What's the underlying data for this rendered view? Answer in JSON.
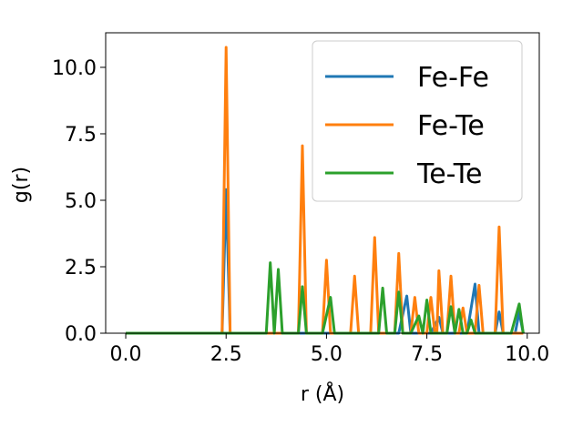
{
  "chart_data": {
    "type": "line",
    "xlabel": "r (Å)",
    "ylabel": "g(r)",
    "xlim": [
      -0.5,
      10.3
    ],
    "ylim": [
      0.0,
      11.3
    ],
    "xticks": [
      0.0,
      2.5,
      5.0,
      7.5,
      10.0
    ],
    "xtick_labels": [
      "0.0",
      "2.5",
      "5.0",
      "7.5",
      "10.0"
    ],
    "yticks": [
      0.0,
      2.5,
      5.0,
      7.5,
      10.0
    ],
    "ytick_labels": [
      "0.0",
      "2.5",
      "5.0",
      "7.5",
      "10.0"
    ],
    "grid": false,
    "legend_position": "upper-right",
    "series": [
      {
        "name": "Fe-Fe",
        "color": "#1f77b4",
        "points": [
          [
            0.0,
            0
          ],
          [
            2.3,
            0
          ],
          [
            2.4,
            0
          ],
          [
            2.5,
            5.4
          ],
          [
            2.6,
            0
          ],
          [
            3.0,
            0
          ],
          [
            6.8,
            0
          ],
          [
            7.0,
            1.4
          ],
          [
            7.1,
            0
          ],
          [
            7.6,
            0
          ],
          [
            7.8,
            0.6
          ],
          [
            7.9,
            0
          ],
          [
            8.5,
            0
          ],
          [
            8.7,
            1.85
          ],
          [
            8.8,
            0
          ],
          [
            9.2,
            0
          ],
          [
            9.3,
            0.8
          ],
          [
            9.4,
            0
          ],
          [
            9.7,
            0
          ],
          [
            9.8,
            0.8
          ],
          [
            9.9,
            0
          ]
        ]
      },
      {
        "name": "Fe-Te",
        "color": "#ff7f0e",
        "points": [
          [
            0.0,
            0
          ],
          [
            2.4,
            0
          ],
          [
            2.5,
            10.75
          ],
          [
            2.6,
            0
          ],
          [
            4.3,
            0
          ],
          [
            4.4,
            7.05
          ],
          [
            4.5,
            0
          ],
          [
            4.9,
            0
          ],
          [
            5.0,
            2.75
          ],
          [
            5.1,
            0
          ],
          [
            5.6,
            0
          ],
          [
            5.7,
            2.15
          ],
          [
            5.8,
            0
          ],
          [
            6.1,
            0
          ],
          [
            6.2,
            3.6
          ],
          [
            6.3,
            0
          ],
          [
            6.7,
            0
          ],
          [
            6.8,
            3.0
          ],
          [
            6.9,
            0
          ],
          [
            7.1,
            0
          ],
          [
            7.2,
            1.35
          ],
          [
            7.3,
            0
          ],
          [
            7.5,
            0
          ],
          [
            7.6,
            1.35
          ],
          [
            7.7,
            0
          ],
          [
            7.75,
            0
          ],
          [
            7.8,
            2.35
          ],
          [
            7.9,
            0
          ],
          [
            8.0,
            0
          ],
          [
            8.1,
            2.15
          ],
          [
            8.2,
            0
          ],
          [
            8.3,
            0
          ],
          [
            8.4,
            0.95
          ],
          [
            8.5,
            0
          ],
          [
            8.7,
            0
          ],
          [
            8.8,
            1.8
          ],
          [
            8.9,
            0
          ],
          [
            9.2,
            0
          ],
          [
            9.3,
            4.0
          ],
          [
            9.4,
            0
          ],
          [
            9.9,
            0
          ]
        ]
      },
      {
        "name": "Te-Te",
        "color": "#2ca02c",
        "points": [
          [
            0.0,
            0
          ],
          [
            3.5,
            0
          ],
          [
            3.6,
            2.65
          ],
          [
            3.7,
            0
          ],
          [
            3.8,
            2.4
          ],
          [
            3.9,
            0
          ],
          [
            4.3,
            0
          ],
          [
            4.4,
            1.75
          ],
          [
            4.5,
            0
          ],
          [
            4.9,
            0
          ],
          [
            5.1,
            1.35
          ],
          [
            5.2,
            0
          ],
          [
            6.3,
            0
          ],
          [
            6.4,
            1.7
          ],
          [
            6.5,
            0
          ],
          [
            6.7,
            0
          ],
          [
            6.8,
            1.55
          ],
          [
            6.9,
            0
          ],
          [
            7.1,
            0
          ],
          [
            7.3,
            0.65
          ],
          [
            7.4,
            0
          ],
          [
            7.5,
            1.25
          ],
          [
            7.6,
            0
          ],
          [
            8.0,
            0
          ],
          [
            8.1,
            1.0
          ],
          [
            8.2,
            0
          ],
          [
            8.3,
            0.9
          ],
          [
            8.4,
            0
          ],
          [
            8.5,
            0
          ],
          [
            8.6,
            0.5
          ],
          [
            8.7,
            0
          ],
          [
            9.6,
            0
          ],
          [
            9.8,
            1.1
          ],
          [
            9.9,
            0
          ]
        ]
      }
    ]
  }
}
